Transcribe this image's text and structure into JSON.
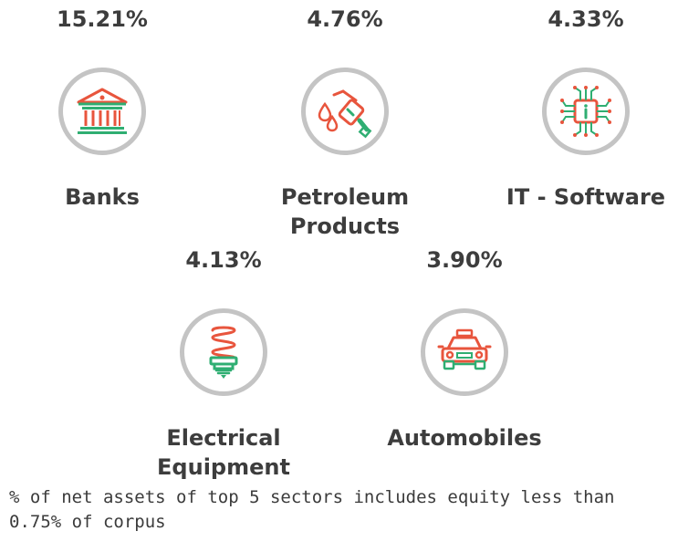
{
  "sectors": [
    {
      "percent": "15.21%",
      "label": "Banks",
      "icon": "bank-icon"
    },
    {
      "percent": "4.76%",
      "label": "Petroleum Products",
      "icon": "fuel-nozzle-icon"
    },
    {
      "percent": "4.33%",
      "label": "IT - Software",
      "icon": "circuit-chip-icon"
    },
    {
      "percent": "4.13%",
      "label": "Electrical Equipment",
      "icon": "cfl-bulb-icon"
    },
    {
      "percent": "3.90%",
      "label": "Automobiles",
      "icon": "taxi-car-icon"
    }
  ],
  "footnote": "% of net assets of top 5 sectors includes equity less than 0.75% of corpus",
  "colors": {
    "accent_red": "#e8553d",
    "accent_green": "#2fae72",
    "ring_gray": "#c4c4c4",
    "text_dark": "#3d3d3d"
  }
}
